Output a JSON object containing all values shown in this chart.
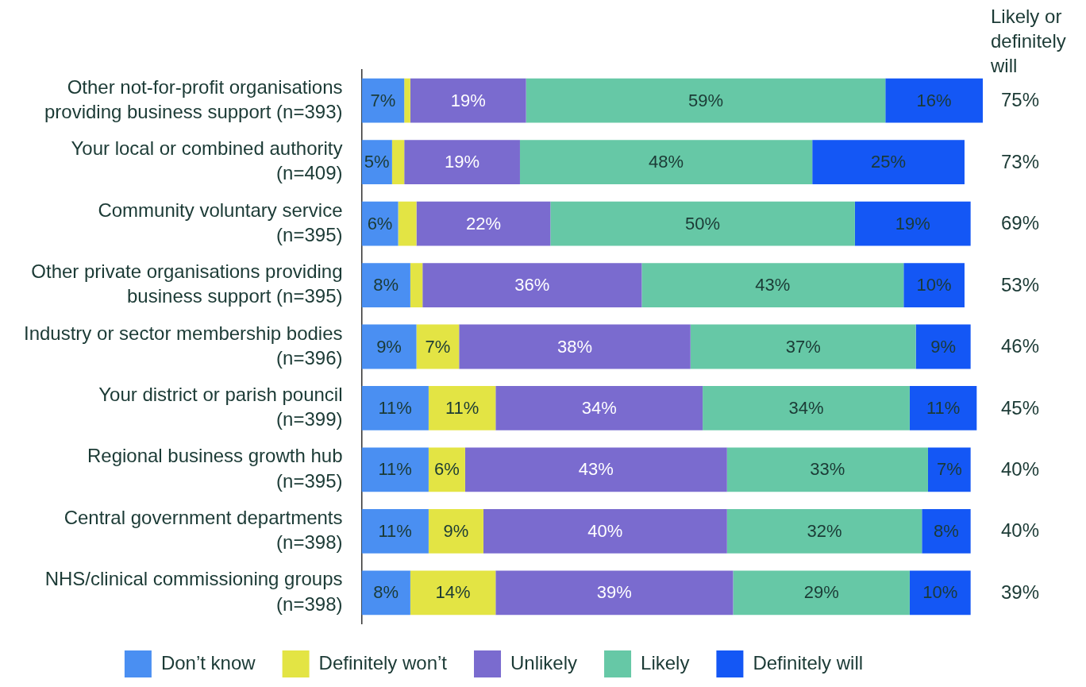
{
  "chart_data": {
    "type": "bar",
    "orientation": "horizontal",
    "stacked": true,
    "tick_labels": "y",
    "grid": false,
    "legend": "bottom",
    "xlim": [
      0,
      102
    ],
    "categories": [
      "Other not-for-profit organisations\nproviding business support (n=393)",
      "Your local or combined authority\n(n=409)",
      "Community voluntary service\n(n=395)",
      "Other private organisations providing\nbusiness support (n=395)",
      "Industry or sector membership bodies\n(n=396)",
      "Your district or parish pouncil\n(n=399)",
      "Regional business growth hub\n(n=395)",
      "Central government departments\n(n=398)",
      "NHS/clinical commissioning groups\n(n=398)"
    ],
    "series": [
      {
        "name": "Don’t know",
        "color": "#4a8ff2",
        "values": [
          7,
          5,
          6,
          8,
          9,
          11,
          11,
          11,
          8
        ],
        "value_labels": [
          "7%",
          "5%",
          "6%",
          "8%",
          "9%",
          "11%",
          "11%",
          "11%",
          "8%"
        ]
      },
      {
        "name": "Definitely won’t",
        "color": "#e3e444",
        "values": [
          1,
          2,
          3,
          2,
          7,
          11,
          6,
          9,
          14
        ],
        "value_labels": [
          null,
          null,
          null,
          null,
          "7%",
          "11%",
          "6%",
          "9%",
          "14%"
        ]
      },
      {
        "name": "Unlikely",
        "color": "#7a6bcf",
        "values": [
          19,
          19,
          22,
          36,
          38,
          34,
          43,
          40,
          39
        ],
        "value_labels": [
          "19%",
          "19%",
          "22%",
          "36%",
          "38%",
          "34%",
          "43%",
          "40%",
          "39%"
        ]
      },
      {
        "name": "Likely",
        "color": "#66c8a6",
        "values": [
          59,
          48,
          50,
          43,
          37,
          34,
          33,
          32,
          29
        ],
        "value_labels": [
          "59%",
          "48%",
          "50%",
          "43%",
          "37%",
          "34%",
          "33%",
          "32%",
          "29%"
        ]
      },
      {
        "name": "Definitely will",
        "color": "#1457f5",
        "values": [
          16,
          25,
          19,
          10,
          9,
          11,
          7,
          8,
          10
        ],
        "value_labels": [
          "16%",
          "25%",
          "19%",
          "10%",
          "9%",
          "11%",
          "7%",
          "8%",
          "10%"
        ]
      }
    ],
    "annotations": [
      "Likely or definitely will",
      "75%",
      "73%",
      "69%",
      "53%",
      "46%",
      "45%",
      "40%",
      "40%",
      "39%"
    ]
  }
}
